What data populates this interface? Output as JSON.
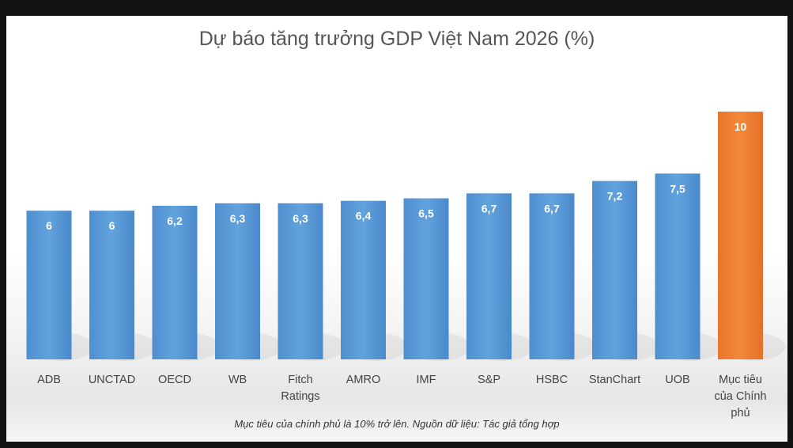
{
  "chart_data": {
    "type": "bar",
    "title": "Dự báo tăng trưởng GDP Việt Nam 2026 (%)",
    "categories": [
      [
        "ADB"
      ],
      [
        "UNCTAD"
      ],
      [
        "OECD"
      ],
      [
        "WB"
      ],
      [
        "Fitch",
        "Ratings"
      ],
      [
        "AMRO"
      ],
      [
        "IMF"
      ],
      [
        "S&P"
      ],
      [
        "HSBC"
      ],
      [
        "StanChart"
      ],
      [
        "UOB"
      ],
      [
        "Mục tiêu",
        "của Chính",
        "phủ"
      ]
    ],
    "values": [
      6,
      6,
      6.2,
      6.3,
      6.3,
      6.4,
      6.5,
      6.7,
      6.7,
      7.2,
      7.5,
      10
    ],
    "value_labels": [
      "6",
      "6",
      "6,2",
      "6,3",
      "6,3",
      "6,4",
      "6,5",
      "6,7",
      "6,7",
      "7,2",
      "7,5",
      "10"
    ],
    "colors": {
      "default": "#5b9bd5",
      "highlight": "#ed7d31",
      "highlight_index": 11
    },
    "ylim": [
      0,
      11
    ],
    "grid": false,
    "legend": "none",
    "footnote": "Mục tiêu của chính phủ là 10% trở lên. Nguồn dữ liệu: Tác giả tổng hợp"
  }
}
